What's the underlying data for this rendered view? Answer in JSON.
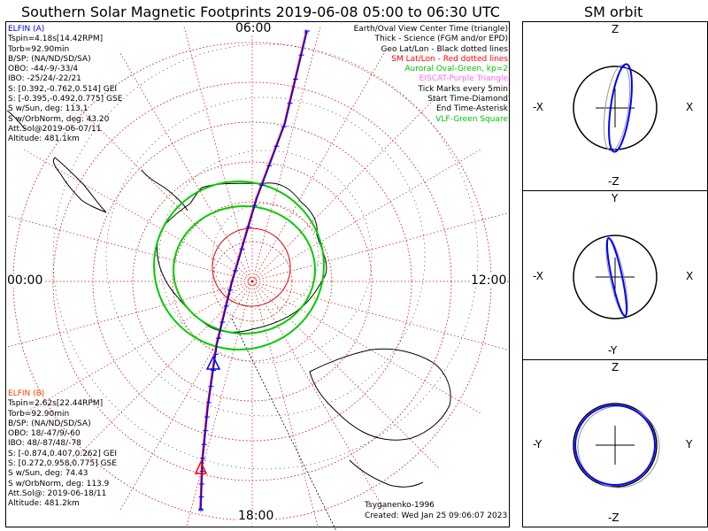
{
  "title": "Southern Solar Magnetic Footprints 2019-06-08 05:00 to 06:30 UTC",
  "orbit_title": "SM orbit",
  "clock_labels": {
    "top": "06:00",
    "left": "00:00",
    "right": "12:00",
    "bottom": "18:00"
  },
  "elfin_a": {
    "name": "ELFIN (A)",
    "color": "#0000ff",
    "lines": [
      "Tspin=4.18s[14.42RPM]",
      "Torb=92.90min",
      "B/SP: (NA/ND/SD/SA)",
      "OBO: -44/-9/-33/4",
      "IBO: -25/24/-22/21",
      "S: [0.392,-0.762,0.514] GEI",
      "S: [-0.395,-0.492,0.775] GSE",
      "S w/Sun, deg: 113.1",
      "S w/OrbNorm, deg: 43.20",
      "Att.Sol@2019-06-07/11",
      "Altitude: 481.1km"
    ]
  },
  "elfin_b": {
    "name": "ELFIN (B)",
    "color": "#ff4000",
    "lines": [
      "Tspin=2.62s[22.44RPM]",
      "Torb=92.90min",
      "B/SP: (NA/ND/SD/SA)",
      "OBO: 18/-47/9/-60",
      "IBO: 48/-87/48/-78",
      "S: [-0.874,0.407,0.262] GEI",
      "S: [0.272,0.958,0.775] GSE",
      "S w/Sun, deg: 74.43",
      "S w/OrbNorm, deg: 113.9",
      "Att.Sol@: 2019-06-18/11",
      "Altitude: 481.2km"
    ]
  },
  "legend": [
    {
      "text": "Earth/Oval View Center Time (triangle)",
      "color": "#000000"
    },
    {
      "text": "Thick - Science (FGM and/or EPD)",
      "color": "#000000"
    },
    {
      "text": "Geo Lat/Lon - Black dotted lines",
      "color": "#000000"
    },
    {
      "text": "SM Lat/Lon - Red dotted lines",
      "color": "#ff0000"
    },
    {
      "text": "Auroral Oval-Green, kp=2",
      "color": "#00c000"
    },
    {
      "text": "EISCAT-Purple Triangle",
      "color": "#ff66ff"
    },
    {
      "text": "Tick Marks every 5min",
      "color": "#000000"
    },
    {
      "text": "Start Time-Diamond",
      "color": "#000000"
    },
    {
      "text": "End Time-Asterisk",
      "color": "#000000"
    },
    {
      "text": "VLF-Green Square",
      "color": "#00c000"
    }
  ],
  "footer": {
    "model": "Tsyganenko-1996",
    "created": "Created: Wed Jan 25 09:06:07 2023"
  },
  "orbit_panels": [
    {
      "top": "Z",
      "bottom": "-Z",
      "left": "-X",
      "right": "X"
    },
    {
      "top": "Y",
      "bottom": "-Y",
      "left": "-X",
      "right": "X"
    },
    {
      "top": "Z",
      "bottom": "-Z",
      "left": "-Y",
      "right": "Y"
    }
  ],
  "colors": {
    "elfin_a": "#0000ff",
    "elfin_b": "#ff0000",
    "oval": "#00cc00",
    "sm_grid": "#dd0000",
    "geo_grid": "#000000"
  },
  "chart_data": [
    {
      "type": "polar-map",
      "description_source": "southern hemisphere magnetic footprint map",
      "title": "Southern Solar Magnetic Footprints 2019-06-08 05:00 to 06:30 UTC",
      "angular_labels": [
        "06:00",
        "12:00",
        "18:00",
        "00:00"
      ],
      "series": [
        {
          "name": "ELFIN (A)",
          "color": "#0000ff"
        },
        {
          "name": "ELFIN (B)",
          "color": "#ff0000"
        }
      ],
      "tick_interval": "5min"
    }
  ]
}
